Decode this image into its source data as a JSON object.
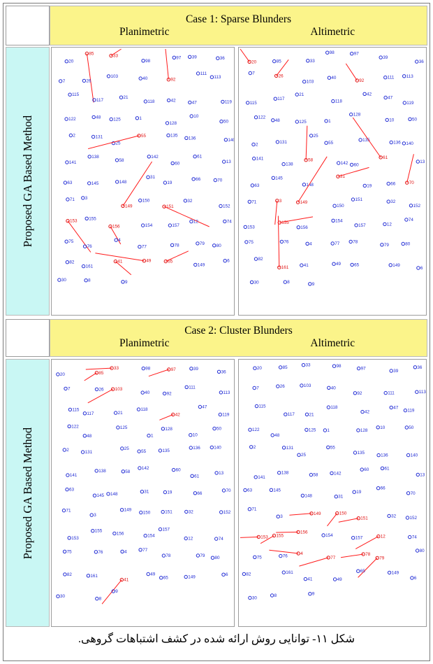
{
  "figure": {
    "cases": [
      {
        "title": "Case 1: Sparse Blunders",
        "left_label": "Planimetric",
        "right_label": "Altimetric",
        "side_label": "Proposed GA Based Method",
        "planimetric_blunders": [
          "85",
          "92",
          "41",
          "65",
          "49",
          "33",
          "55",
          "149",
          "153",
          "151",
          "156"
        ],
        "altimetric_blunders": [
          "92",
          "3",
          "20",
          "58",
          "61",
          "31",
          "70",
          "149",
          "155",
          "26",
          "161"
        ]
      },
      {
        "title": "Case 2: Cluster Blunders",
        "left_label": "Planimetric",
        "right_label": "Altimetric",
        "side_label": "Proposed GA Based Method",
        "planimetric_blunders": [
          "85",
          "97",
          "33",
          "102",
          "103",
          "105",
          "15",
          "16",
          "41",
          "114",
          "42"
        ],
        "altimetric_blunders": [
          "149",
          "153",
          "150",
          "151",
          "155",
          "156",
          "12",
          "4",
          "77",
          "78",
          "79"
        ]
      }
    ],
    "point_labels": [
      "20",
      "85",
      "33",
      "98",
      "97",
      "39",
      "36",
      "7",
      "26",
      "103",
      "40",
      "92",
      "111",
      "113",
      "115",
      "117",
      "21",
      "118",
      "42",
      "47",
      "119",
      "122",
      "48",
      "125",
      "1",
      "128",
      "10",
      "50",
      "2",
      "131",
      "25",
      "55",
      "135",
      "136",
      "140",
      "141",
      "138",
      "58",
      "142",
      "60",
      "61",
      "13",
      "63",
      "145",
      "148",
      "31",
      "19",
      "66",
      "70",
      "71",
      "3",
      "149",
      "150",
      "151",
      "32",
      "152",
      "153",
      "155",
      "156",
      "154",
      "157",
      "12",
      "74",
      "75",
      "76",
      "4",
      "77",
      "78",
      "79",
      "80",
      "82",
      "161",
      "41",
      "49",
      "65",
      "149",
      "6",
      "30",
      "8",
      "9"
    ],
    "caption": "شکل ۱۱- توانایی روش ارائه شده در کشف اشتباهات گروهی."
  }
}
